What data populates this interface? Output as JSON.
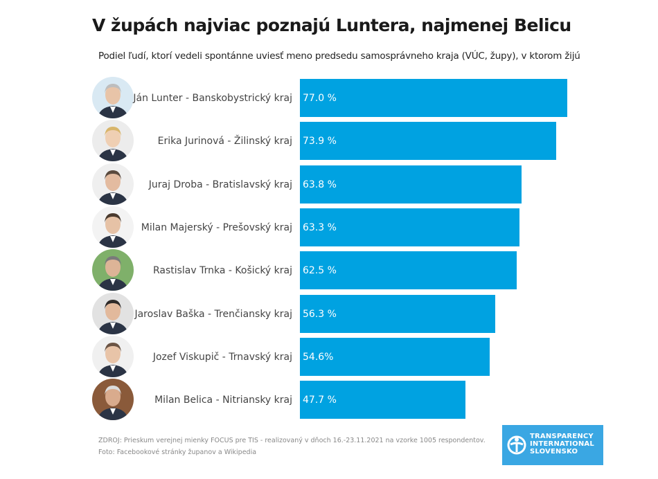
{
  "chart_data": {
    "type": "bar",
    "orientation": "horizontal",
    "title": "V župách najviac poznajú Luntera, najmenej Belicu",
    "subtitle": "Podiel ľudí, ktorí vedeli spontánne uviesť meno predsedu samosprávneho kraja (VÚC, župy), v ktorom žijú",
    "xlabel": "",
    "ylabel": "",
    "xlim": [
      0,
      100
    ],
    "categories": [
      "Ján Lunter - Banskobystrický kraj",
      "Erika Jurinová - Žilinský kraj",
      "Juraj Droba - Bratislavský kraj",
      "Milan Majerský - Prešovský kraj",
      "Rastislav Trnka - Košický kraj",
      "Jaroslav Baška - Trenčiansky kraj",
      "Jozef Viskupič - Trnavský kraj",
      "Milan Belica - Nitriansky kraj"
    ],
    "values": [
      77.0,
      73.9,
      63.8,
      63.3,
      62.5,
      56.3,
      54.6,
      47.7
    ],
    "value_labels": [
      "77.0 %",
      "73.9 %",
      "63.8 %",
      "63.3 %",
      "62.5 %",
      "56.3 %",
      "54.6%",
      "47.7 %"
    ],
    "bar_color": "#00a2e1",
    "grid": false,
    "legend": "none"
  },
  "rows": [
    {
      "name": "Ján Lunter - Banskobystrický kraj",
      "value": 77.0,
      "value_label": "77.0 %",
      "avatar": "portrait-icon"
    },
    {
      "name": "Erika Jurinová - Žilinský kraj",
      "value": 73.9,
      "value_label": "73.9 %",
      "avatar": "portrait-icon"
    },
    {
      "name": "Juraj Droba - Bratislavský kraj",
      "value": 63.8,
      "value_label": "63.8 %",
      "avatar": "portrait-icon"
    },
    {
      "name": "Milan Majerský - Prešovský kraj",
      "value": 63.3,
      "value_label": "63.3 %",
      "avatar": "portrait-icon"
    },
    {
      "name": "Rastislav Trnka - Košický kraj",
      "value": 62.5,
      "value_label": "62.5 %",
      "avatar": "portrait-icon"
    },
    {
      "name": "Jaroslav Baška - Trenčiansky kraj",
      "value": 56.3,
      "value_label": "56.3 %",
      "avatar": "portrait-icon"
    },
    {
      "name": "Jozef Viskupič - Trnavský kraj",
      "value": 54.6,
      "value_label": "54.6%",
      "avatar": "portrait-icon"
    },
    {
      "name": "Milan Belica - Nitriansky kraj",
      "value": 47.7,
      "value_label": "47.7 %",
      "avatar": "portrait-icon"
    }
  ],
  "footer": {
    "source": "ZDROJ: Prieskum verejnej mienky FOCUS pre TIS - realizovaný v dňoch 16.-23.11.2021 na vzorke 1005 respondentov.",
    "photo_credit": "Foto: Facebookové stránky županov a Wikipedia"
  },
  "logo": {
    "line1": "TRANSPARENCY",
    "line2": "INTERNATIONAL",
    "line3": "SLOVENSKO",
    "color": "#3aa7e3"
  }
}
